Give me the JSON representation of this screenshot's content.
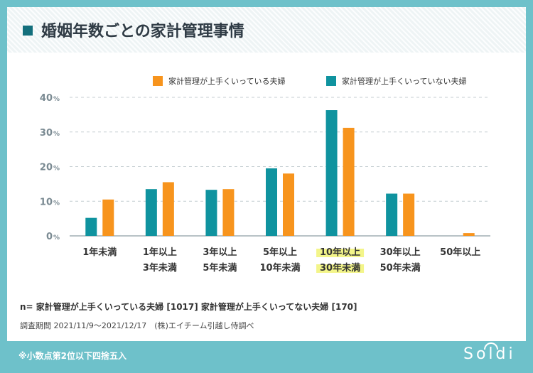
{
  "title": "婚姻年数ごとの家計管理事情",
  "legend": {
    "series1": "家計管理が上手くいっている夫婦",
    "series2": "家計管理が上手くいっていない夫婦"
  },
  "colors": {
    "good": "#f7941d",
    "bad": "#0f939f",
    "accent": "#136f7c",
    "highlight": "#f3f58a"
  },
  "notes": {
    "sample": "n= 家計管理が上手くいっている夫婦 [1017]  家計管理が上手くいってない夫婦 [170]",
    "period": "調査期間 2021/11/9〜2021/12/17　(株)エイチーム引越し侍調べ"
  },
  "footer": {
    "note": "※小数点第2位以下四捨五入",
    "logo": "Soldi"
  },
  "chart_data": {
    "type": "bar",
    "title": "婚姻年数ごとの家計管理事情",
    "xlabel": "",
    "ylabel": "",
    "ylim": [
      0,
      40
    ],
    "yticks": [
      {
        "value": 0,
        "label": "0",
        "unit": "%"
      },
      {
        "value": 10,
        "label": "10",
        "unit": "%"
      },
      {
        "value": 20,
        "label": "20",
        "unit": "%"
      },
      {
        "value": 30,
        "label": "30",
        "unit": "%"
      },
      {
        "value": 40,
        "label": "40",
        "unit": "%"
      }
    ],
    "categories": [
      [
        "1年未満"
      ],
      [
        "1年以上",
        "3年未満"
      ],
      [
        "3年以上",
        "5年未満"
      ],
      [
        "5年以上",
        "10年未満"
      ],
      [
        "10年以上",
        "30年未満"
      ],
      [
        "30年以上",
        "50年未満"
      ],
      [
        "50年以上"
      ]
    ],
    "highlight_category": 4,
    "series": [
      {
        "name": "家計管理が上手くいっていない夫婦",
        "color": "#0f939f",
        "values": [
          5.2,
          13.5,
          13.3,
          19.5,
          36.3,
          12.2,
          0
        ]
      },
      {
        "name": "家計管理が上手くいっている夫婦",
        "color": "#f7941d",
        "values": [
          10.5,
          15.5,
          13.5,
          18.0,
          31.2,
          12.2,
          0.8
        ]
      }
    ]
  }
}
